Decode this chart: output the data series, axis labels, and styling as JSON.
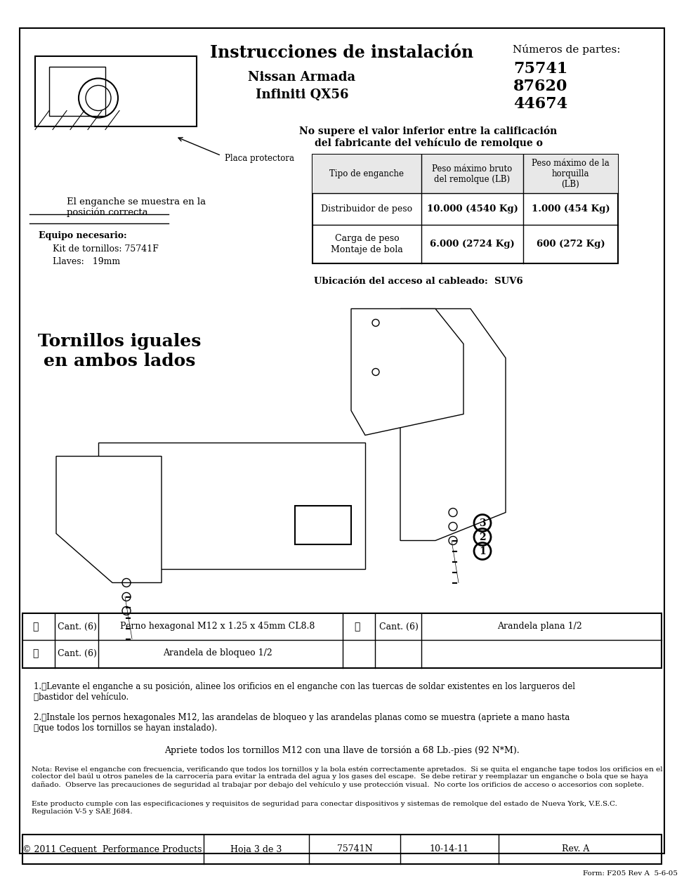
{
  "title": "Instrucciones de instalación",
  "subtitle1": "Nissan Armada",
  "subtitle2": "Infiniti QX56",
  "parts_label": "Números de partes:",
  "parts": [
    "75741",
    "87620",
    "44674"
  ],
  "table_header": [
    "Tipo de enganche",
    "Peso máximo bruto\ndel remolque (LB)",
    "Peso máximo de la\nhorquilla\n(LB)"
  ],
  "table_row1": [
    "Distribuidor de peso",
    "10.000 (4540 Kg)",
    "1.000 (454 Kg)"
  ],
  "table_row2": [
    "Carga de peso\nMontaje de bola",
    "6.000 (2724 Kg)",
    "600 (272 Kg)"
  ],
  "warning_text": "No supere el valor inferior entre la calificación\ndel fabricante del vehículo de remolque o",
  "enganche_label": "El enganche se muestra en la\nposición correcta",
  "equipo_label": "Equipo necesario:",
  "kit_label": "Kit de tornillos: 75741F",
  "llaves_label": "Llaves:   19mm",
  "placa_label": "Placa protectora",
  "ubicacion_label": "Ubicación del acceso al cableado:  SUV6",
  "tornillos_text": "Tornillos iguales\nen ambos lados",
  "parts_table": [
    [
      "①",
      "Cant. (6)",
      "Perno hexagonal M12 x 1.25 x 45mm CL8.8",
      "③",
      "Cant. (6)",
      "Arandela plana 1/2"
    ],
    [
      "②",
      "Cant. (6)",
      "Arandela de bloqueo 1/2",
      "",
      "",
      ""
    ]
  ],
  "instructions": [
    "1.\tLevante el enganche a su posición, alinee los orificios en el enganche con las tuercas de soldar existentes en los largueros del\n\tbastidor del vehículo.",
    "2.\tInstale los pernos hexagonales M12, las arandelas de bloqueo y las arandelas planas como se muestra (apriete a mano hasta\n\tque todos los tornillos se hayan instalado)."
  ],
  "torque_note": "Apriete todos los tornillos M12 con una llave de torsión a 68 Lb.-pies (92 N*M).",
  "nota_text": "Nota: Revise el enganche con frecuencia, verificando que todos los tornillos y la bola estén correctamente apretados.  Si se quita el enganche tape todos los orificios en el\ncolector del baúl u otros paneles de la carrocería para evitar la entrada del agua y los gases del escape.  Se debe retirar y reemplazar un enganche o bola que se haya\ndañado.  Observe las precauciones de seguridad al trabajar por debajo del vehículo y use protección visual.  No corte los orificios de acceso o accesorios con soplete.",
  "product_text": "Este producto cumple con las especificaciones y requisitos de seguridad para conectar dispositivos y sistemas de remolque del estado de Nueva York, V.E.S.C.\nRegulación V-5 y SAE J684.",
  "footer_copyright": "© 2011 Cequent  Performance Products",
  "footer_hoja": "Hoja 3 de 3",
  "footer_part": "75741N",
  "footer_date": "10-14-11",
  "footer_rev": "Rev. A",
  "footer_form": "Form: F205 Rev A  5-6-05",
  "bg_color": "#ffffff",
  "border_color": "#000000",
  "text_color": "#000000"
}
